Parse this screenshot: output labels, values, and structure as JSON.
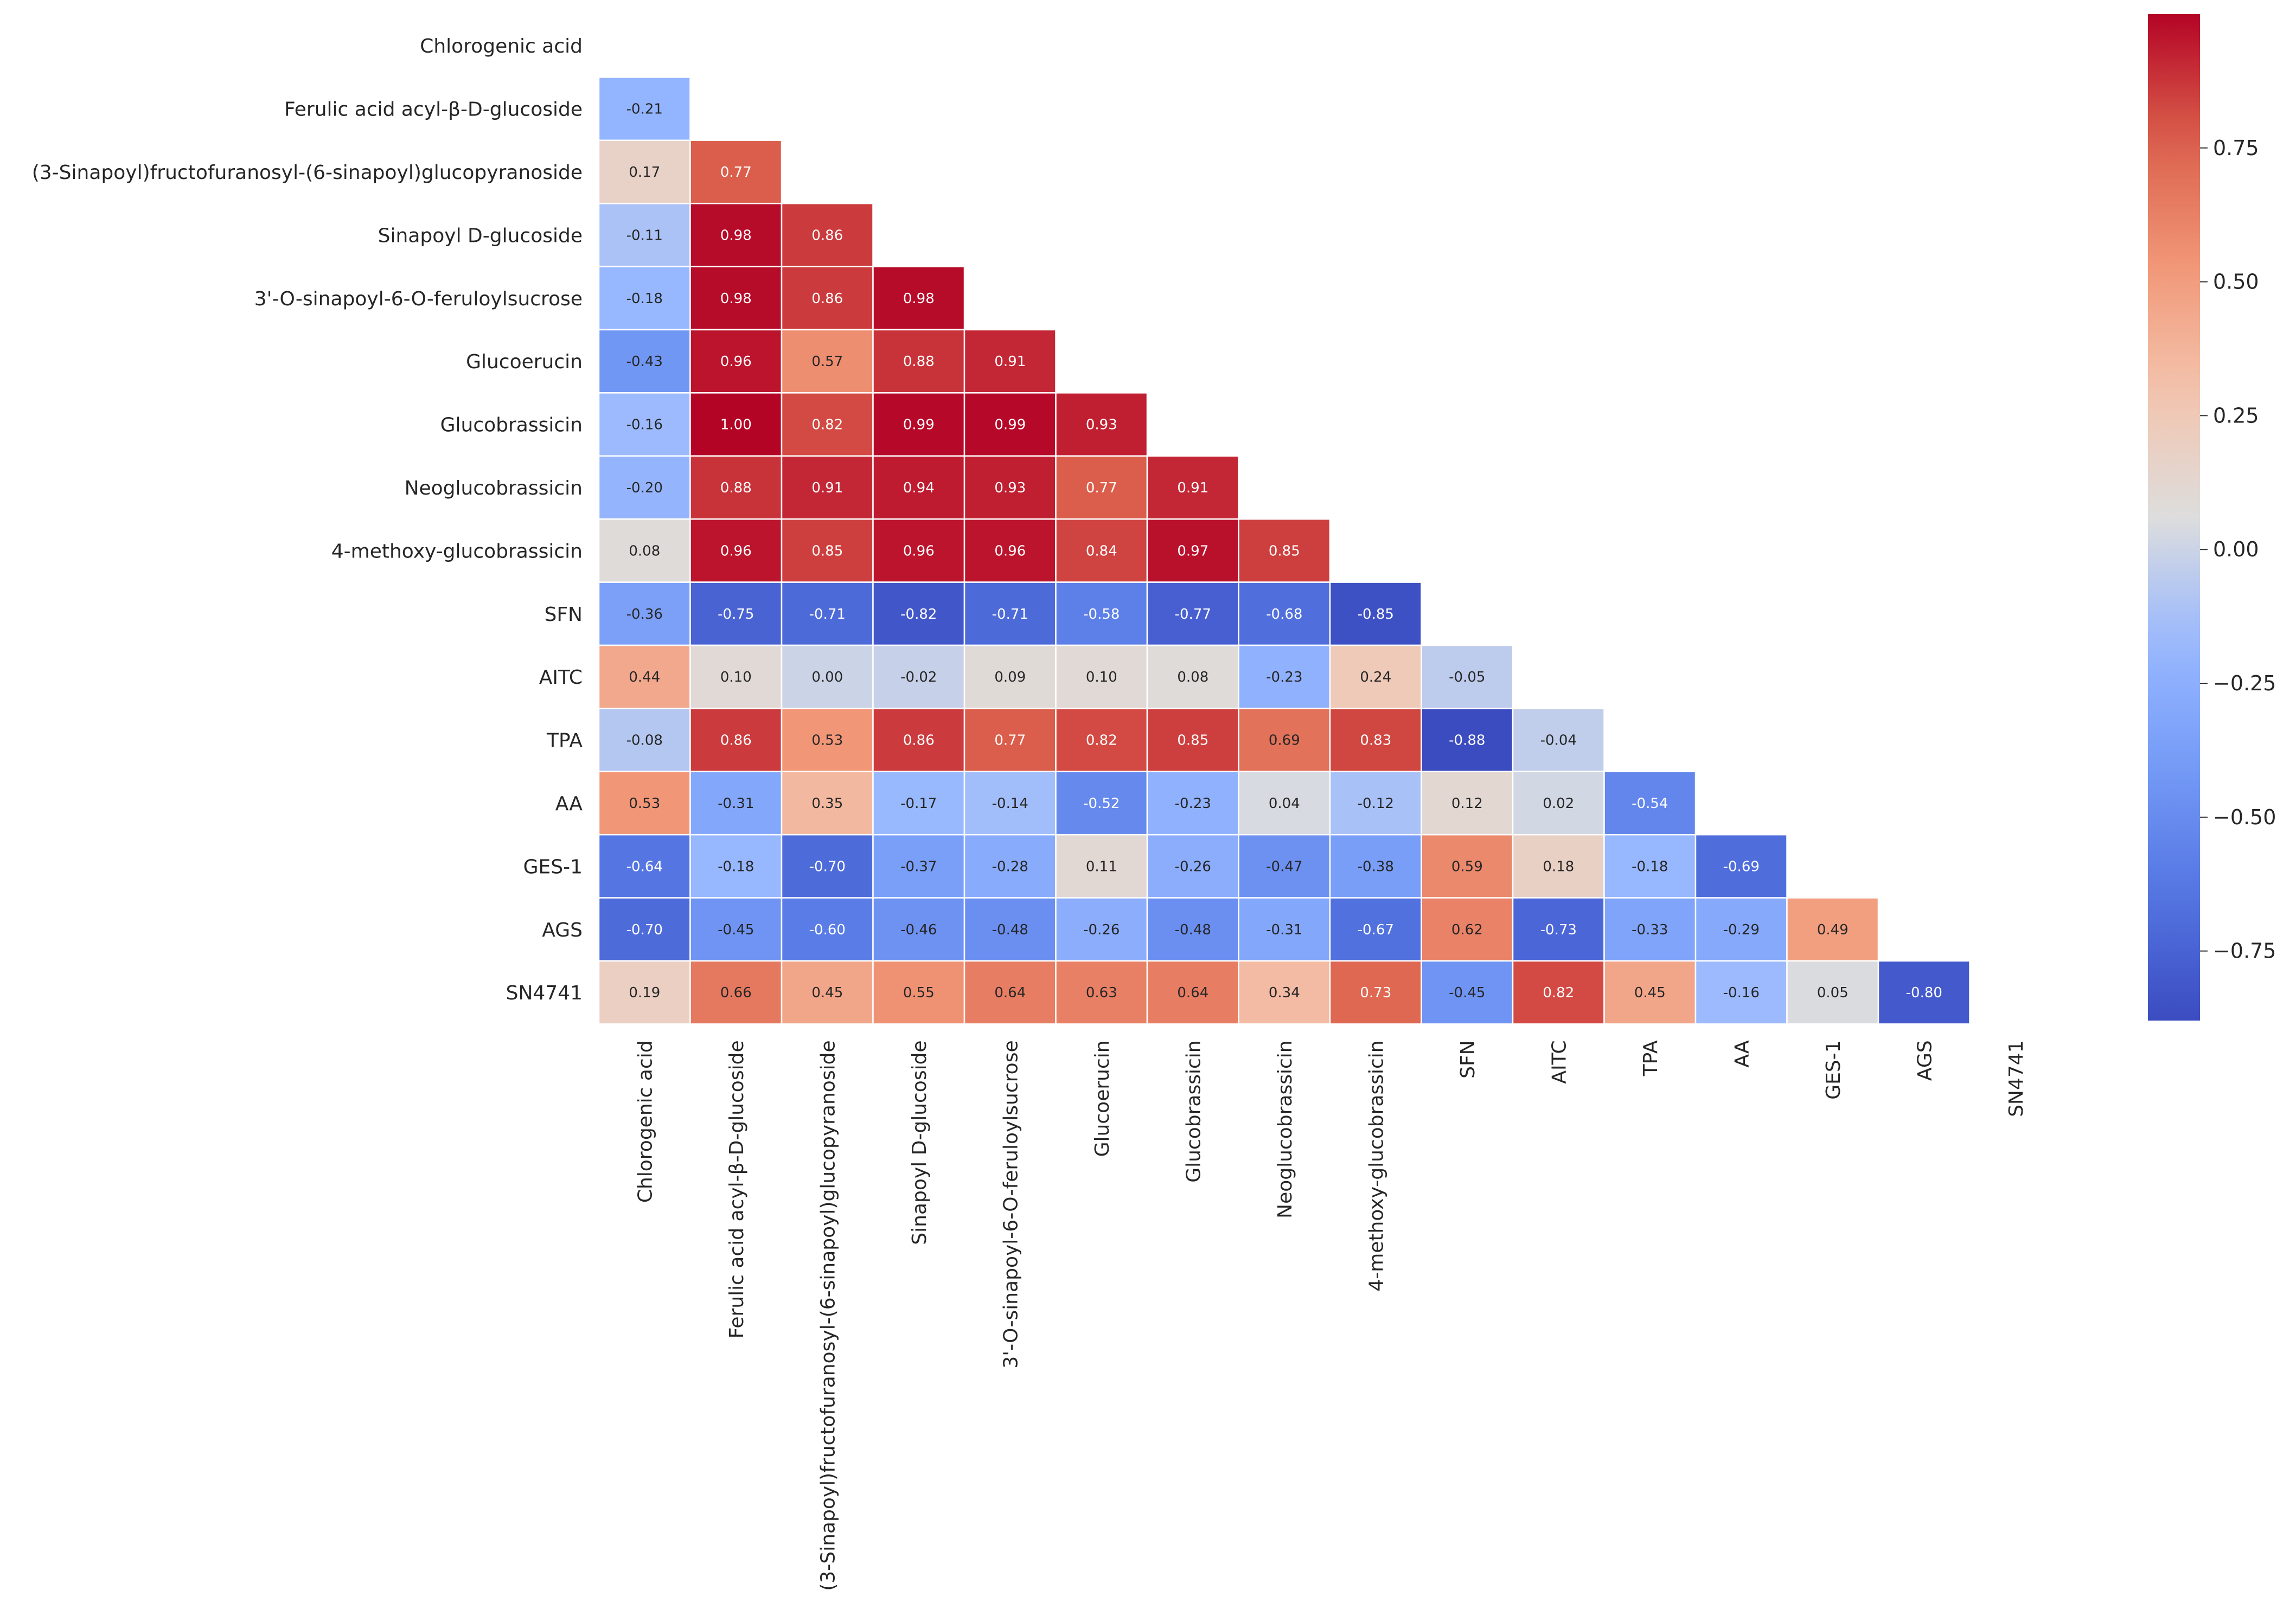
{
  "chart_data": {
    "type": "heatmap",
    "title": "",
    "xlabel": "",
    "ylabel": "",
    "mask": "upper-triangle-including-diagonal",
    "value_format": "2-decimal",
    "variables": [
      "Chlorogenic acid",
      "Ferulic acid acyl-β-D-glucoside",
      "(3-Sinapoyl)fructofuranosyl-(6-sinapoyl)glucopyranoside",
      "Sinapoyl D-glucoside",
      "3'-O-sinapoyl-6-O-feruloylsucrose",
      "Glucoerucin",
      "Glucobrassicin",
      "Neoglucobrassicin",
      "4-methoxy-glucobrassicin",
      "SFN",
      "AITC",
      "TPA",
      "AA",
      "GES-1",
      "AGS",
      "SN4741"
    ],
    "rows": [
      {
        "label": "Chlorogenic acid",
        "values": []
      },
      {
        "label": "Ferulic acid acyl-β-D-glucoside",
        "values": [
          -0.21
        ]
      },
      {
        "label": "(3-Sinapoyl)fructofuranosyl-(6-sinapoyl)glucopyranoside",
        "values": [
          0.17,
          0.77
        ]
      },
      {
        "label": "Sinapoyl D-glucoside",
        "values": [
          -0.11,
          0.98,
          0.86
        ]
      },
      {
        "label": "3'-O-sinapoyl-6-O-feruloylsucrose",
        "values": [
          -0.18,
          0.98,
          0.86,
          0.98
        ]
      },
      {
        "label": "Glucoerucin",
        "values": [
          -0.43,
          0.96,
          0.57,
          0.88,
          0.91
        ]
      },
      {
        "label": "Glucobrassicin",
        "values": [
          -0.16,
          1.0,
          0.82,
          0.99,
          0.99,
          0.93
        ]
      },
      {
        "label": "Neoglucobrassicin",
        "values": [
          -0.2,
          0.88,
          0.91,
          0.94,
          0.93,
          0.77,
          0.91
        ]
      },
      {
        "label": "4-methoxy-glucobrassicin",
        "values": [
          0.08,
          0.96,
          0.85,
          0.96,
          0.96,
          0.84,
          0.97,
          0.85
        ]
      },
      {
        "label": "SFN",
        "values": [
          -0.36,
          -0.75,
          -0.71,
          -0.82,
          -0.71,
          -0.58,
          -0.77,
          -0.68,
          -0.85
        ]
      },
      {
        "label": "AITC",
        "values": [
          0.44,
          0.1,
          0.0,
          -0.02,
          0.09,
          0.1,
          0.08,
          -0.23,
          0.24,
          -0.05
        ]
      },
      {
        "label": "TPA",
        "values": [
          -0.08,
          0.86,
          0.53,
          0.86,
          0.77,
          0.82,
          0.85,
          0.69,
          0.83,
          -0.88,
          -0.04
        ]
      },
      {
        "label": "AA",
        "values": [
          0.53,
          -0.31,
          0.35,
          -0.17,
          -0.14,
          -0.52,
          -0.23,
          0.04,
          -0.12,
          0.12,
          0.02,
          -0.54
        ]
      },
      {
        "label": "GES-1",
        "values": [
          -0.64,
          -0.18,
          -0.7,
          -0.37,
          -0.28,
          0.11,
          -0.26,
          -0.47,
          -0.38,
          0.59,
          0.18,
          -0.18,
          -0.69
        ]
      },
      {
        "label": "AGS",
        "values": [
          -0.7,
          -0.45,
          -0.6,
          -0.46,
          -0.48,
          -0.26,
          -0.48,
          -0.31,
          -0.67,
          0.62,
          -0.73,
          -0.33,
          -0.29,
          0.49
        ]
      },
      {
        "label": "SN4741",
        "values": [
          0.19,
          0.66,
          0.45,
          0.55,
          0.64,
          0.63,
          0.64,
          0.34,
          0.73,
          -0.45,
          0.82,
          0.45,
          -0.16,
          0.05,
          -0.8
        ]
      }
    ],
    "colorbar": {
      "colormap": "coolwarm",
      "range": [
        -0.88,
        1.0
      ],
      "ticks": [
        0.75,
        0.5,
        0.25,
        0.0,
        -0.25,
        -0.5,
        -0.75
      ],
      "tick_labels": [
        "0.75",
        "0.50",
        "0.25",
        "0.00",
        "−0.25",
        "−0.50",
        "−0.75"
      ]
    },
    "colors": {
      "low": "#3b4cc0",
      "mid": "#dddddd",
      "high": "#b40426",
      "cell_border": "#ffffff",
      "light_text": "#ffffff",
      "dark_text": "#262626"
    }
  }
}
